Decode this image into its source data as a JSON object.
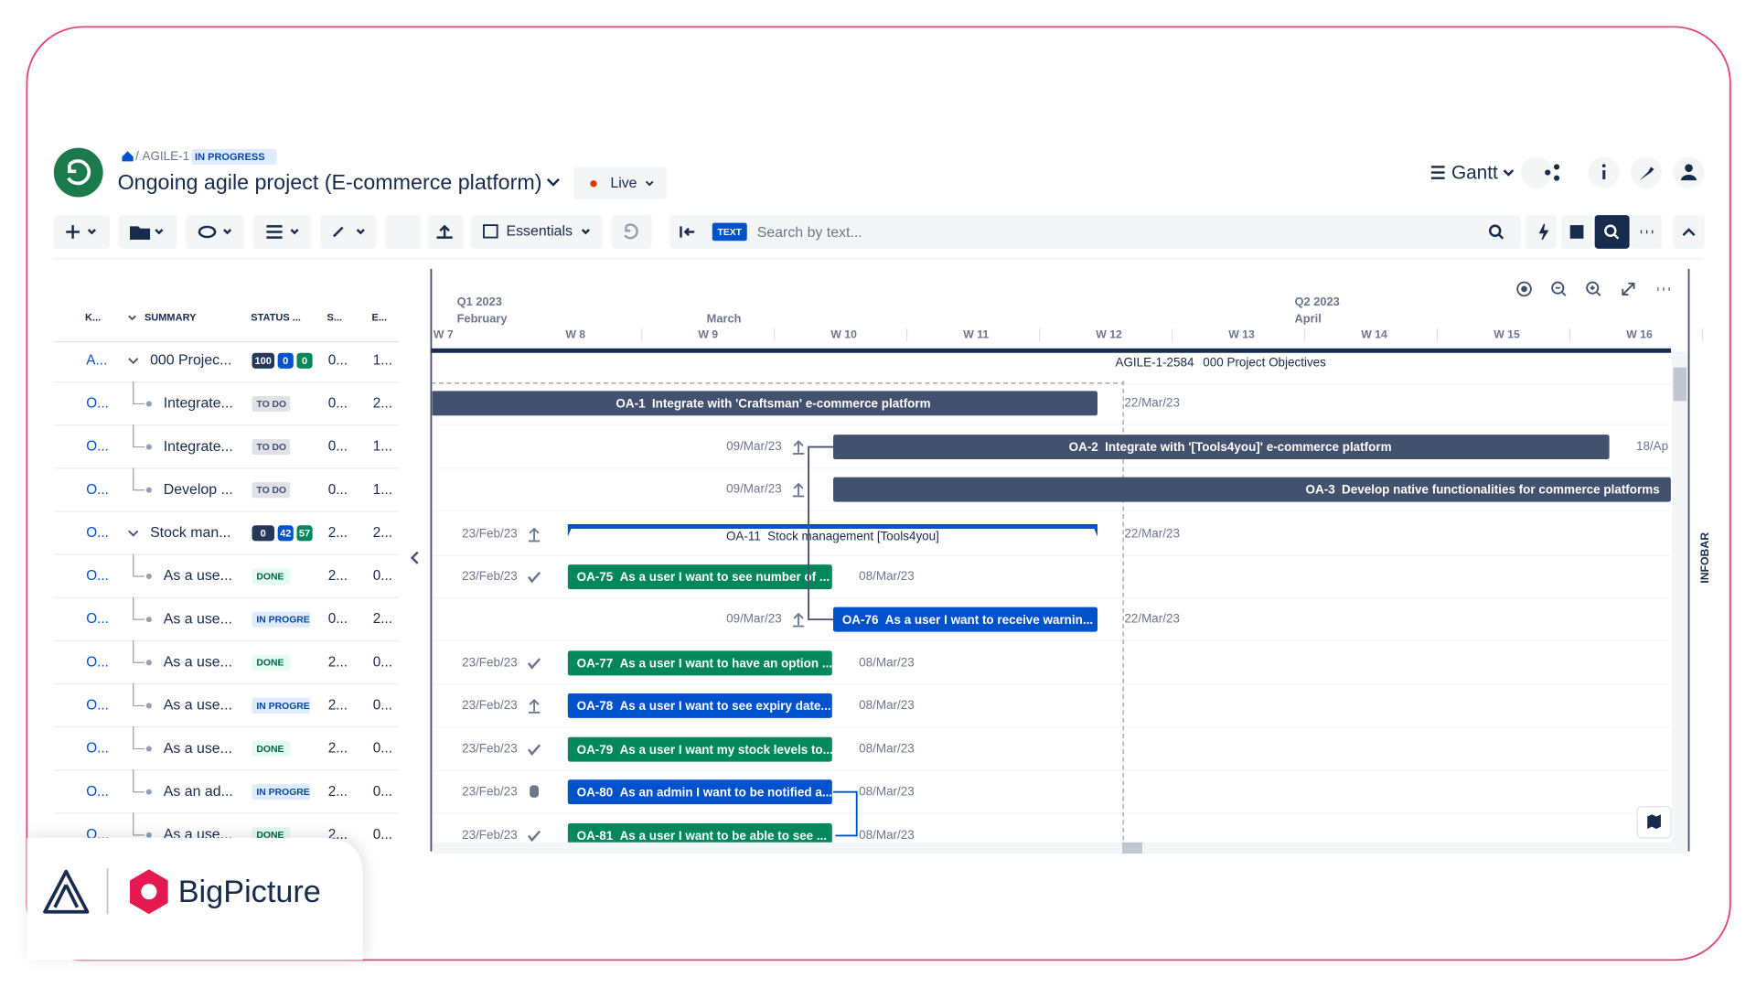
{
  "breadcrumb": {
    "project_key": "AGILE-1",
    "status": "IN PROGRESS"
  },
  "header": {
    "title": "Ongoing agile project (E-commerce platform)",
    "mode": "Live",
    "view": "Gantt"
  },
  "toolbar": {
    "essentials": "Essentials",
    "search_tag": "TEXT",
    "search_placeholder": "Search by text..."
  },
  "table": {
    "columns": [
      "K...",
      "SUMMARY",
      "STATUS ...",
      "S...",
      "E..."
    ],
    "rows": [
      {
        "key": "A...",
        "summary": "000 Projec...",
        "status": [
          "100",
          "0",
          "0"
        ],
        "start": "0...",
        "end": "1..."
      },
      {
        "key": "O...",
        "summary": "Integrate...",
        "status": "TO DO",
        "start": "0...",
        "end": "2..."
      },
      {
        "key": "O...",
        "summary": "Integrate...",
        "status": "TO DO",
        "start": "0...",
        "end": "1..."
      },
      {
        "key": "O...",
        "summary": "Develop ...",
        "status": "TO DO",
        "start": "0...",
        "end": "1..."
      },
      {
        "key": "O...",
        "summary": "Stock man...",
        "status": [
          "0",
          "42",
          "57"
        ],
        "start": "2...",
        "end": "2..."
      },
      {
        "key": "O...",
        "summary": "As a use...",
        "status": "DONE",
        "start": "2...",
        "end": "0..."
      },
      {
        "key": "O...",
        "summary": "As a use...",
        "status": "IN PROGRE",
        "start": "0...",
        "end": "2..."
      },
      {
        "key": "O...",
        "summary": "As a use...",
        "status": "DONE",
        "start": "2...",
        "end": "0..."
      },
      {
        "key": "O...",
        "summary": "As a use...",
        "status": "IN PROGRE",
        "start": "2...",
        "end": "0..."
      },
      {
        "key": "O...",
        "summary": "As a use...",
        "status": "DONE",
        "start": "2...",
        "end": "0..."
      },
      {
        "key": "O...",
        "summary": "As an ad...",
        "status": "IN PROGRE",
        "start": "2...",
        "end": "0..."
      },
      {
        "key": "O...",
        "summary": "As a use...",
        "status": "DONE",
        "start": "2...",
        "end": "0..."
      }
    ]
  },
  "timeline": {
    "quarters": [
      "Q1 2023",
      "Q2 2023"
    ],
    "months": [
      "February",
      "March",
      "April"
    ],
    "weeks": [
      "W 7",
      "W 8",
      "W 9",
      "W 10",
      "W 11",
      "W 12",
      "W 13",
      "W 14",
      "W 15",
      "W 16"
    ]
  },
  "gantt": {
    "rows": [
      {
        "key": "AGILE-1-2584",
        "title": "000 Project Objectives"
      },
      {
        "key": "OA-1",
        "title": "Integrate with 'Craftsman' e-commerce platform",
        "end": "22/Mar/23",
        "color": "#42526e"
      },
      {
        "key": "OA-2",
        "title": "Integrate with '[Tools4you]' e-commerce platform",
        "start": "09/Mar/23",
        "end": "18/Ap",
        "color": "#42526e"
      },
      {
        "key": "OA-3",
        "title": "Develop native functionalities for commerce platforms",
        "start": "09/Mar/23",
        "color": "#42526e"
      },
      {
        "key": "OA-11",
        "title": "Stock management [Tools4you]",
        "start": "23/Feb/23",
        "end": "22/Mar/23",
        "color": "#0052cc"
      },
      {
        "key": "OA-75",
        "title": "As a user I want to see number of ...",
        "start": "23/Feb/23",
        "end": "08/Mar/23",
        "color": "#00875a"
      },
      {
        "key": "OA-76",
        "title": "As a user I want to receive warnin...",
        "start": "09/Mar/23",
        "end": "22/Mar/23",
        "color": "#0052cc"
      },
      {
        "key": "OA-77",
        "title": "As a user I want to have an option ...",
        "start": "23/Feb/23",
        "end": "08/Mar/23",
        "color": "#00875a"
      },
      {
        "key": "OA-78",
        "title": "As a user I want to see expiry date...",
        "start": "23/Feb/23",
        "end": "08/Mar/23",
        "color": "#0052cc"
      },
      {
        "key": "OA-79",
        "title": "As a user I want my stock levels to...",
        "start": "23/Feb/23",
        "end": "08/Mar/23",
        "color": "#00875a"
      },
      {
        "key": "OA-80",
        "title": "As an admin I want to be notified a...",
        "start": "23/Feb/23",
        "end": "08/Mar/23",
        "color": "#0052cc"
      },
      {
        "key": "OA-81",
        "title": "As a user I want to be able to see ...",
        "start": "23/Feb/23",
        "end": "08/Mar/23",
        "color": "#00875a"
      }
    ]
  },
  "infobar": "INFOBAR",
  "brand": "BigPicture"
}
